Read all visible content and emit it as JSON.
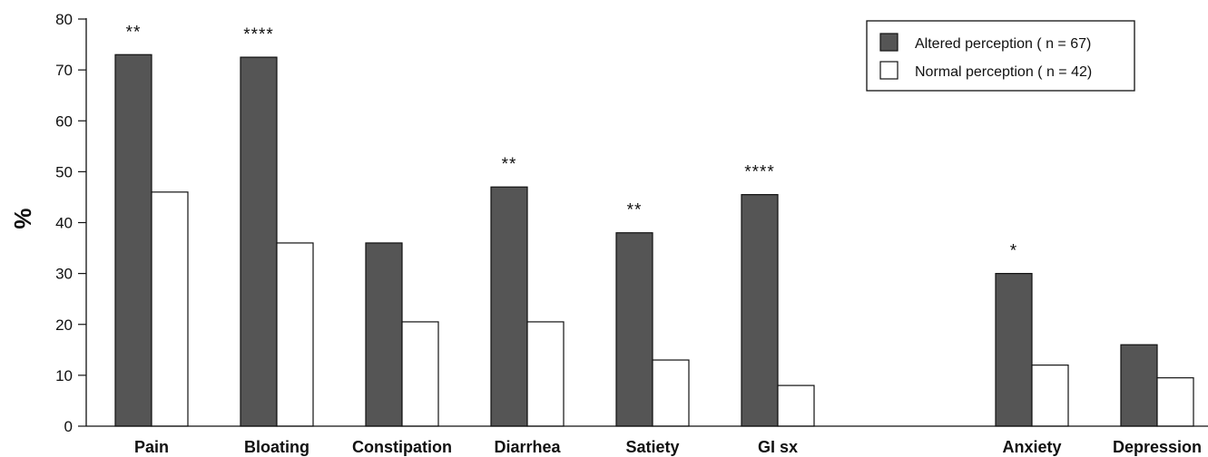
{
  "chart_data": {
    "type": "bar",
    "title": "",
    "xlabel": "",
    "ylabel": "%",
    "ylim": [
      0,
      80
    ],
    "yticks": [
      "0",
      "10",
      "20",
      "30",
      "40",
      "50",
      "60",
      "70",
      "80"
    ],
    "grid": false,
    "legend_position": "top-right",
    "categories": [
      "Pain",
      "Bloating",
      "Constipation",
      "Diarrhea",
      "Satiety",
      "GI sx",
      "Anxiety",
      "Depression"
    ],
    "category_gap_after": "GI sx",
    "series": [
      {
        "name": "Altered perception ( n = 67)",
        "color": "#555555",
        "values": [
          73,
          72.5,
          36,
          47,
          38,
          45.5,
          30,
          16
        ]
      },
      {
        "name": "Normal perception ( n = 42)",
        "color": "#ffffff",
        "values": [
          46,
          36,
          20.5,
          20.5,
          13,
          8,
          12,
          9.5
        ]
      }
    ],
    "annotations": [
      "**",
      "****",
      "",
      "**",
      "**",
      "****",
      "*",
      ""
    ]
  }
}
